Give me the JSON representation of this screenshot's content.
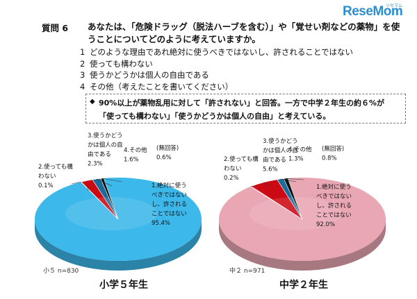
{
  "logo": {
    "main": "ReseMom",
    "sub": "リセマム"
  },
  "question": {
    "label": "質問 6",
    "text": "あなたは、「危険ドラッグ（脱法ハーブを含む）」や「覚せい剤などの薬物」を使うことについてどのように考えていますか。",
    "options": [
      {
        "num": "1",
        "text": "どのような理由であれ絶対に使うべきではないし、許されることではない"
      },
      {
        "num": "2",
        "text": "使っても構わない"
      },
      {
        "num": "3",
        "text": "使うかどうかは個人の自由である"
      },
      {
        "num": "4",
        "text": "その他（考えたことを書いてください）"
      }
    ]
  },
  "summary": {
    "bullet": "◆",
    "line1": "90%以上が薬物乱用に対して「許されない」と回答。一方で中学２年生の約６%が",
    "line2": "「使っても構わない」「使うかどうかは個人の自由」と考えている。"
  },
  "colors": {
    "option1_elem": "#3cb8ea",
    "option1_mid": "#e9a6b3",
    "option2": "#e60012",
    "option3": "#cc0a14",
    "option4": "#1a6a9a",
    "no_answer": "#111111"
  },
  "chart_data": [
    {
      "type": "pie",
      "title": "小学５年生",
      "sample": "小５ n=830",
      "categories": [
        "1.絶対に使うべきではないし、許されることではない",
        "2.使っても構わない",
        "3.使うかどうかは個人の自由である",
        "4.その他",
        "(無回答)"
      ],
      "values": [
        95.4,
        0.1,
        2.3,
        1.6,
        0.6
      ],
      "labels": [
        {
          "lines": [
            "1.絶対に使う",
            "べきではない",
            "し、許される",
            "ことではない",
            "95.4%"
          ]
        },
        {
          "lines": [
            "2.使っても構",
            "わない",
            "0.1%"
          ]
        },
        {
          "lines": [
            "3.使うかどう",
            "かは個人の自",
            "由である",
            "2.3%"
          ]
        },
        {
          "lines": [
            "4.その他",
            "1.6%"
          ]
        },
        {
          "lines": [
            "(無回答)",
            "0.6%"
          ]
        }
      ]
    },
    {
      "type": "pie",
      "title": "中学２年生",
      "sample": "中２ n=971",
      "categories": [
        "1.絶対に使うべきではないし、許されることではない",
        "2.使っても構わない",
        "3.使うかどうかは個人の自由である",
        "4.その他",
        "(無回答)"
      ],
      "values": [
        92.0,
        0.2,
        5.6,
        1.3,
        0.8
      ],
      "labels": [
        {
          "lines": [
            "1.絶対に使う",
            "べきではない",
            "し、許される",
            "ことではない",
            "92.0%"
          ]
        },
        {
          "lines": [
            "2.使っても構",
            "わない",
            "0.2%"
          ]
        },
        {
          "lines": [
            "3.使うかどう",
            "かは個人の自",
            "由である",
            "5.6%"
          ]
        },
        {
          "lines": [
            "4.その他",
            "1.3%"
          ]
        },
        {
          "lines": [
            "(無回答)",
            "0.8%"
          ]
        }
      ]
    }
  ]
}
